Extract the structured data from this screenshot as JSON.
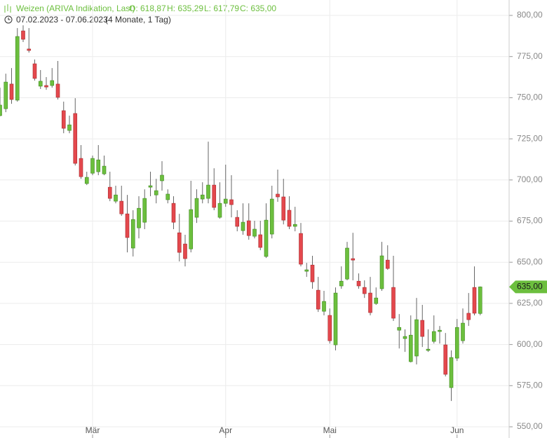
{
  "chart_data": {
    "type": "candlestick",
    "title": "Weizen (ARIVA Indikation, Last)",
    "ohlc_labels": [
      "O: 618,87",
      "H: 635,29",
      "L: 617,79",
      "C: 635,00"
    ],
    "date_range": "07.02.2023 - 07.06.2023",
    "period": "(4 Monate, 1 Tag)",
    "up_color": "#6cbf3e",
    "down_color": "#e4484d",
    "last_price": {
      "value": 635.0,
      "label": "635,00"
    },
    "categories": [
      null,
      null,
      null,
      null,
      null,
      null,
      null,
      null,
      null,
      null,
      null,
      null,
      null,
      null,
      null,
      null,
      "Mär",
      null,
      null,
      null,
      null,
      null,
      null,
      null,
      null,
      null,
      null,
      null,
      null,
      null,
      null,
      null,
      null,
      null,
      null,
      null,
      null,
      null,
      null,
      "Apr",
      null,
      null,
      null,
      null,
      null,
      null,
      null,
      null,
      null,
      null,
      null,
      null,
      null,
      null,
      null,
      null,
      null,
      "Mai",
      null,
      null,
      null,
      null,
      null,
      null,
      null,
      null,
      null,
      null,
      null,
      null,
      null,
      null,
      null,
      null,
      null,
      null,
      null,
      null,
      null,
      "Jun",
      null,
      null,
      null,
      null
    ],
    "open": [
      739.1,
      743.3,
      758.3,
      748.5,
      790.6,
      779.6,
      770.6,
      757.0,
      757.4,
      757.4,
      758.3,
      742.1,
      730.1,
      740.4,
      713.1,
      697.8,
      704.1,
      705.0,
      703.7,
      695.6,
      687.1,
      687.1,
      679.4,
      658.6,
      670.9,
      674.3,
      695.6,
      690.9,
      699.5,
      688.0,
      685.8,
      667.9,
      661.1,
      658.1,
      677.3,
      688.4,
      688.8,
      696.9,
      677.3,
      685.8,
      688.0,
      677.3,
      669.2,
      675.2,
      665.8,
      666.7,
      653.5,
      667.1,
      691.4,
      689.7,
      681.6,
      671.8,
      667.5,
      644.5,
      648.3,
      633.0,
      620.2,
      617.7,
      599.8,
      635.6,
      639.8,
      652.2,
      638.5,
      634.7,
      631.3,
      624.9,
      633.9,
      651.3,
      634.7,
      608.7,
      603.6,
      589.6,
      593.0,
      614.7,
      596.4,
      601.9,
      607.9,
      599.8,
      573.8,
      591.7,
      602.3,
      619.0,
      634.7,
      618.87
    ],
    "high": [
      756.1,
      764.6,
      768.0,
      792.3,
      794.0,
      792.3,
      773.2,
      766.8,
      762.5,
      768.0,
      772.3,
      747.6,
      739.1,
      749.7,
      721.2,
      705.0,
      714.8,
      721.2,
      714.8,
      705.0,
      696.5,
      696.5,
      690.9,
      681.6,
      690.1,
      694.3,
      705.0,
      700.7,
      711.4,
      694.3,
      690.1,
      679.4,
      666.7,
      699.5,
      694.3,
      698.6,
      723.3,
      707.1,
      698.6,
      709.3,
      702.9,
      681.6,
      685.8,
      685.8,
      675.2,
      675.2,
      685.8,
      696.5,
      706.3,
      700.7,
      690.1,
      683.7,
      673.9,
      649.6,
      653.9,
      641.1,
      632.6,
      621.9,
      634.7,
      647.5,
      662.4,
      667.9,
      643.2,
      639.0,
      641.1,
      634.7,
      662.4,
      660.3,
      653.9,
      618.5,
      609.2,
      617.7,
      628.3,
      624.1,
      609.2,
      617.7,
      611.3,
      607.0,
      596.4,
      615.5,
      621.9,
      631.3,
      647.5,
      635.29
    ],
    "low": [
      738.7,
      741.2,
      746.3,
      747.6,
      783.8,
      777.4,
      760.4,
      755.3,
      754.8,
      756.1,
      748.9,
      728.4,
      728.4,
      708.8,
      700.7,
      696.9,
      702.9,
      702.9,
      702.9,
      687.1,
      685.8,
      678.2,
      656.0,
      653.5,
      664.5,
      670.1,
      690.1,
      685.8,
      693.5,
      685.8,
      670.1,
      650.5,
      647.5,
      656.0,
      673.9,
      685.8,
      685.8,
      681.6,
      676.5,
      683.7,
      677.3,
      668.8,
      666.7,
      663.7,
      664.5,
      657.3,
      652.6,
      664.5,
      686.7,
      673.0,
      670.1,
      668.8,
      647.5,
      641.1,
      633.9,
      619.8,
      617.7,
      600.6,
      596.4,
      633.9,
      639.0,
      639.0,
      633.9,
      628.3,
      617.7,
      624.1,
      632.6,
      645.4,
      614.3,
      597.6,
      595.5,
      589.1,
      587.9,
      598.5,
      595.5,
      600.6,
      600.6,
      580.6,
      565.7,
      590.0,
      600.6,
      611.3,
      617.7,
      617.79
    ],
    "close": [
      745.5,
      759.5,
      748.9,
      787.2,
      785.5,
      778.7,
      761.7,
      760.0,
      756.5,
      760.4,
      750.2,
      731.4,
      733.5,
      710.1,
      702.0,
      701.6,
      713.1,
      712.2,
      708.4,
      688.8,
      690.9,
      679.4,
      665.0,
      676.0,
      682.8,
      688.8,
      696.5,
      693.5,
      702.9,
      691.4,
      674.3,
      656.0,
      652.2,
      682.0,
      688.8,
      690.9,
      696.9,
      683.3,
      685.8,
      688.4,
      685.0,
      671.8,
      674.3,
      666.2,
      670.1,
      659.0,
      675.6,
      688.4,
      689.7,
      675.6,
      671.8,
      673.0,
      648.8,
      645.4,
      638.1,
      621.5,
      626.2,
      602.3,
      631.3,
      638.5,
      658.6,
      651.3,
      635.6,
      630.9,
      619.4,
      628.3,
      653.9,
      646.2,
      616.0,
      610.4,
      604.9,
      605.7,
      615.1,
      604.9,
      597.2,
      607.9,
      608.7,
      581.9,
      592.1,
      610.4,
      613.0,
      615.1,
      619.0,
      635.0
    ],
    "ylim": [
      550,
      800
    ],
    "yticks": [
      {
        "value": 550,
        "label": "550,00"
      },
      {
        "value": 575,
        "label": "575,00"
      },
      {
        "value": 600,
        "label": "600,00"
      },
      {
        "value": 625,
        "label": "625,00"
      },
      {
        "value": 650,
        "label": "650,00"
      },
      {
        "value": 675,
        "label": "675,00"
      },
      {
        "value": 700,
        "label": "700,00"
      },
      {
        "value": 725,
        "label": "725,00"
      },
      {
        "value": 750,
        "label": "750,00"
      },
      {
        "value": 775,
        "label": "775,00"
      },
      {
        "value": 800,
        "label": "800,00"
      }
    ],
    "grid": true
  }
}
